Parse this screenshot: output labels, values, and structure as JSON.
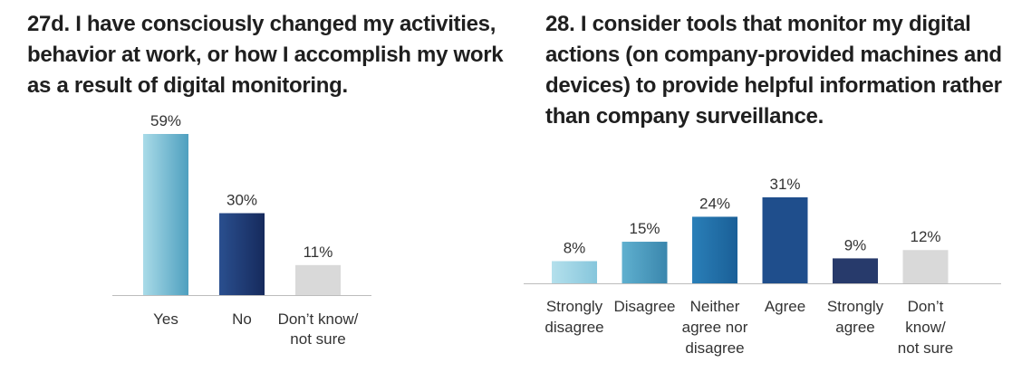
{
  "chart_data": [
    {
      "id": "27d",
      "type": "bar",
      "title": "27d.  I have consciously changed my activities, behavior at work, or how I accomplish my work as a result of digital monitoring.",
      "categories": [
        [
          "Yes"
        ],
        [
          "No"
        ],
        [
          "Don’t know/",
          "not sure"
        ]
      ],
      "values": [
        59,
        30,
        11
      ],
      "value_labels": [
        "59%",
        "30%",
        "11%"
      ],
      "colors": [
        "gradient-lightblue",
        "gradient-navy",
        "#d9d9d9"
      ],
      "ylim": [
        0,
        59
      ],
      "grid": false,
      "legend": "none"
    },
    {
      "id": "28",
      "type": "bar",
      "title": "28. I consider tools that monitor my digital actions (on company-provided machines and devices) to provide helpful information rather than company surveillance.",
      "categories": [
        [
          "Strongly",
          "disagree"
        ],
        [
          "Disagree"
        ],
        [
          "Neither",
          "agree nor",
          "disagree"
        ],
        [
          "Agree"
        ],
        [
          "Strongly",
          "agree"
        ],
        [
          "Don’t",
          "know/",
          "not sure"
        ]
      ],
      "values": [
        8,
        15,
        24,
        31,
        9,
        12
      ],
      "value_labels": [
        "8%",
        "15%",
        "24%",
        "31%",
        "9%",
        "12%"
      ],
      "colors": [
        "gradient-paleblue",
        "gradient-teal",
        "gradient-blue",
        "#1f4e8c",
        "#273a6b",
        "#d9d9d9"
      ],
      "ylim": [
        0,
        31
      ],
      "grid": false,
      "legend": "none"
    }
  ]
}
